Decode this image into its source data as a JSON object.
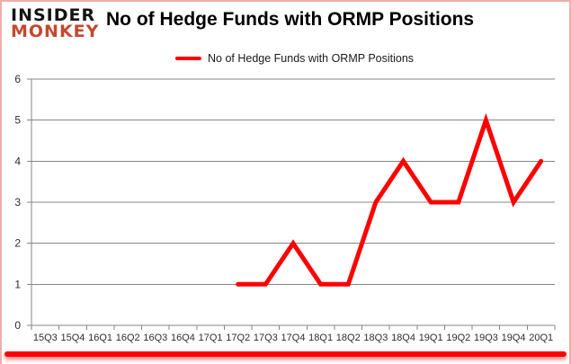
{
  "branding": {
    "logo_line1": "INSIDER",
    "logo_line2": "MONKEY",
    "logo_color1": "#141414",
    "logo_color2": "#c2492f"
  },
  "header": {
    "title": "No of Hedge Funds with ORMP Positions"
  },
  "legend": {
    "label": "No of Hedge Funds with ORMP Positions",
    "line_color": "#ff0000"
  },
  "chart_data": {
    "type": "line",
    "title": "No of Hedge Funds with ORMP Positions",
    "categories": [
      "15Q3",
      "15Q4",
      "16Q1",
      "16Q2",
      "16Q3",
      "16Q4",
      "17Q1",
      "17Q2",
      "17Q3",
      "17Q4",
      "18Q1",
      "18Q2",
      "18Q3",
      "18Q4",
      "19Q1",
      "19Q2",
      "19Q3",
      "19Q4",
      "20Q1"
    ],
    "series": [
      {
        "name": "No of Hedge Funds with ORMP Positions",
        "color": "#ff0000",
        "values": [
          null,
          null,
          null,
          null,
          null,
          null,
          null,
          1,
          1,
          2,
          1,
          1,
          3,
          4,
          3,
          3,
          5,
          3,
          4
        ]
      }
    ],
    "xlabel": "",
    "ylabel": "",
    "ylim": [
      0,
      6
    ],
    "ytick_interval": 1,
    "yticks": [
      0,
      1,
      2,
      3,
      4,
      5,
      6
    ],
    "grid": "horizontal",
    "legend_position": "top",
    "axis_color": "#858585",
    "label_color": "#2e2e2e"
  },
  "footer": {
    "accent_bar_color": "#ff0000"
  },
  "frame": {
    "border_color": "#f0aea8"
  }
}
